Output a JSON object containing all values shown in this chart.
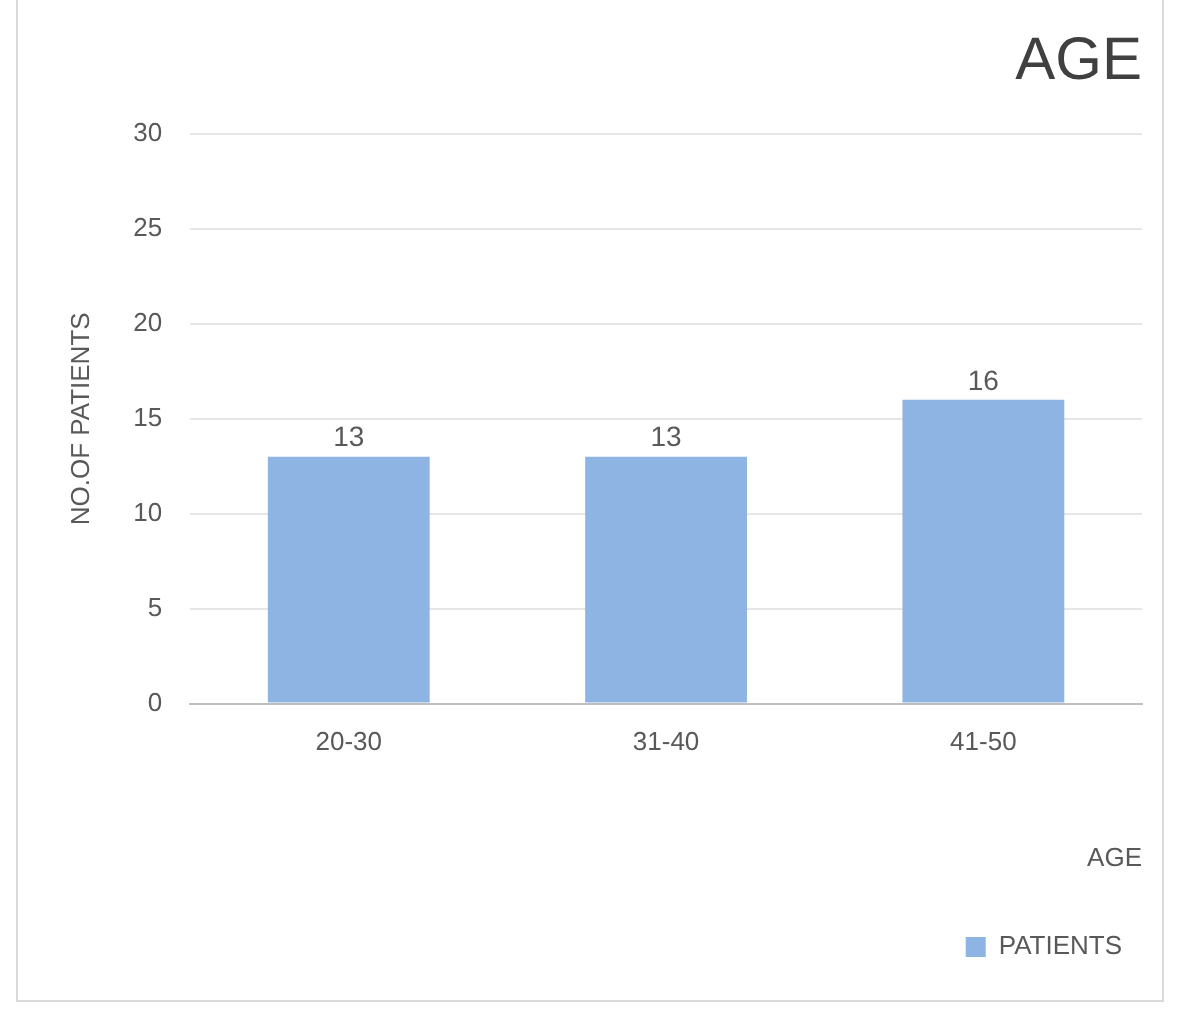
{
  "chart_data": {
    "type": "bar",
    "title": "AGE",
    "xlabel": "AGE",
    "ylabel": "NO.OF PATIENTS",
    "categories": [
      "20-30",
      "31-40",
      "41-50"
    ],
    "series": [
      {
        "name": "PATIENTS",
        "color": "#8db4e2",
        "values": [
          13,
          13,
          16
        ]
      }
    ],
    "ylim": [
      0,
      30
    ],
    "yticks": [
      0,
      5,
      10,
      15,
      20,
      25,
      30
    ],
    "grid": "y",
    "legend": "bottom right",
    "data_labels": true
  }
}
